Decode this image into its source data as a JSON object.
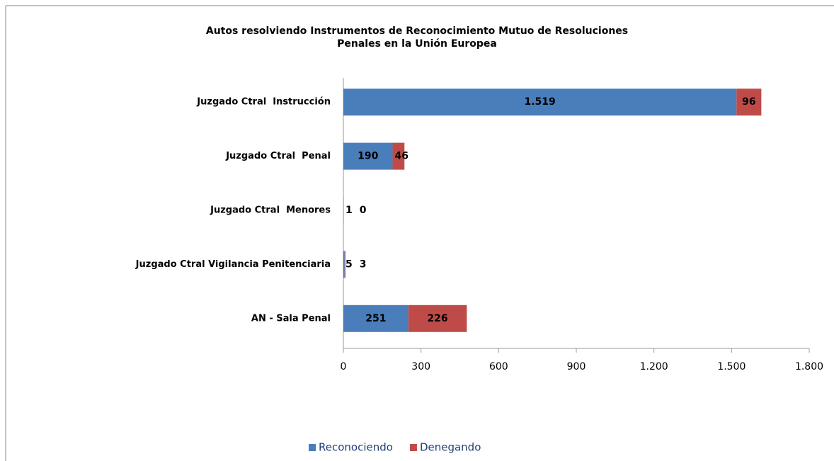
{
  "chart_data": {
    "type": "bar",
    "orientation": "horizontal",
    "stacked": true,
    "title": [
      "Autos resolviendo Instrumentos de Reconocimiento Mutuo de Resoluciones",
      "Penales en la Unión Europea"
    ],
    "categories": [
      "Juzgado Ctral  Instrucción",
      "Juzgado Ctral  Penal",
      "Juzgado Ctral  Menores",
      "Juzgado Ctral Vigilancia Penitenciaria",
      "AN - Sala Penal"
    ],
    "series": [
      {
        "name": "Reconociendo",
        "color": "#4a7ebb",
        "values": [
          1519,
          190,
          1,
          5,
          251
        ],
        "value_labels": [
          "1.519",
          "190",
          "1",
          "5",
          "251"
        ]
      },
      {
        "name": "Denegando",
        "color": "#be4b48",
        "values": [
          96,
          46,
          0,
          3,
          226
        ]
      }
    ],
    "xlim": [
      0,
      1800
    ],
    "xticks": [
      0,
      300,
      600,
      900,
      {
        "value": 1200,
        "label": "1.200"
      },
      {
        "value": 1500,
        "label": "1.500"
      },
      {
        "value": 1800,
        "label": "1.800"
      }
    ],
    "legend": "bottom"
  }
}
